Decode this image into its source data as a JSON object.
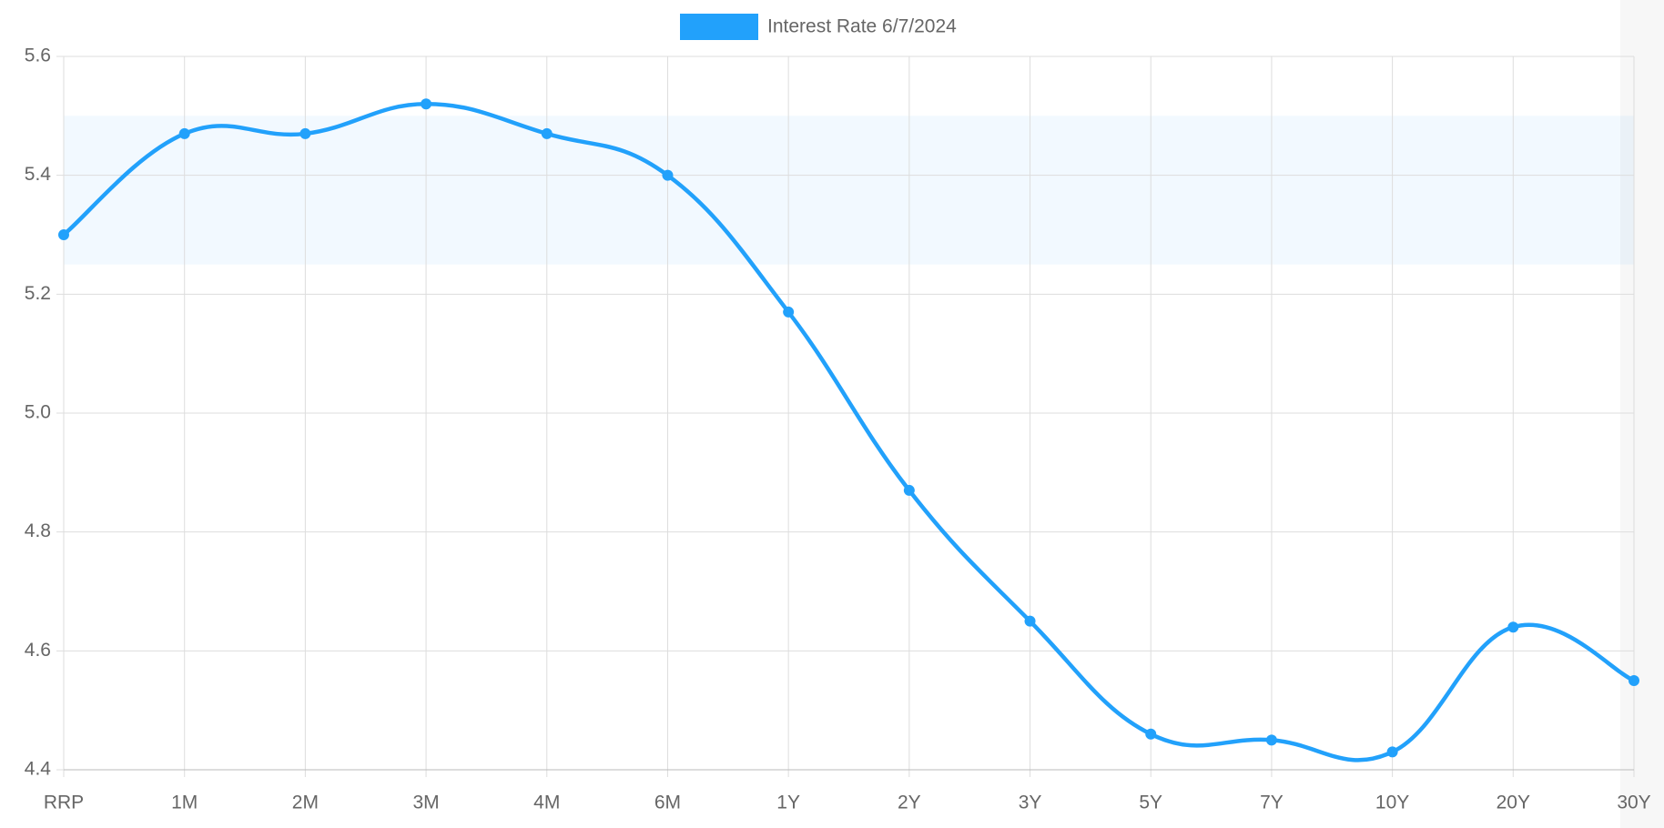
{
  "chart_data": {
    "type": "line",
    "categories": [
      "RRP",
      "1M",
      "2M",
      "3M",
      "4M",
      "6M",
      "1Y",
      "2Y",
      "3Y",
      "5Y",
      "7Y",
      "10Y",
      "20Y",
      "30Y"
    ],
    "series": [
      {
        "name": "Interest Rate 6/7/2024",
        "color": "#22a1fb",
        "values": [
          5.3,
          5.47,
          5.47,
          5.52,
          5.47,
          5.4,
          5.17,
          4.87,
          4.65,
          4.46,
          4.45,
          4.43,
          4.64,
          4.55
        ]
      }
    ],
    "band": [
      5.25,
      5.5
    ],
    "ylim": [
      4.4,
      5.6
    ],
    "yticks": [
      4.4,
      4.6,
      4.8,
      {
        "value": 5.0,
        "label": "5.0"
      },
      5.2,
      5.4,
      5.6
    ],
    "grid": true,
    "legend": "top"
  }
}
